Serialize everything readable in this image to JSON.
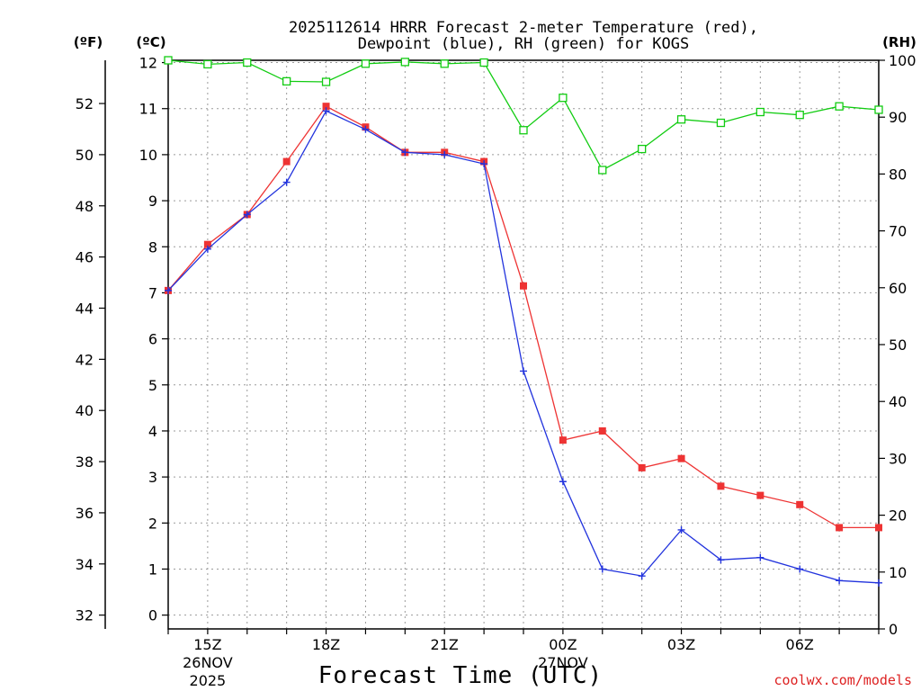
{
  "chart_data": {
    "type": "line",
    "title_line1": "2025112614 HRRR Forecast 2-meter Temperature (red),",
    "title_line2": "Dewpoint (blue), RH (green) for KOGS",
    "xlabel": "Forecast Time (UTC)",
    "credit": "coolwx.com/models",
    "unit_f": "(ºF)",
    "unit_c": "(ºC)",
    "unit_rh": "(RH)",
    "celsius_range": [
      -0.3,
      12.05
    ],
    "rh_range": [
      0,
      100
    ],
    "c_ticks": [
      "0",
      "1",
      "2",
      "3",
      "4",
      "5",
      "6",
      "7",
      "8",
      "9",
      "10",
      "11",
      "12"
    ],
    "f_ticks": [
      "32",
      "34",
      "36",
      "38",
      "40",
      "42",
      "44",
      "46",
      "48",
      "50",
      "52"
    ],
    "rh_ticks": [
      "0",
      "10",
      "20",
      "30",
      "40",
      "50",
      "60",
      "70",
      "80",
      "90",
      "100"
    ],
    "hours": [
      14,
      15,
      16,
      17,
      18,
      19,
      20,
      21,
      22,
      23,
      24,
      25,
      26,
      27,
      28,
      29,
      30,
      31,
      32
    ],
    "x_ticks": [
      {
        "hour": 15,
        "label": "15Z",
        "date": "26NOV",
        "year": "2025"
      },
      {
        "hour": 18,
        "label": "18Z"
      },
      {
        "hour": 21,
        "label": "21Z"
      },
      {
        "hour": 24,
        "label": "00Z",
        "date": "27NOV"
      },
      {
        "hour": 27,
        "label": "03Z"
      },
      {
        "hour": 30,
        "label": "06Z"
      }
    ],
    "series": [
      {
        "name": "Temperature",
        "unit": "C",
        "color": "#ee3333",
        "marker": "filled-square",
        "values": [
          7.05,
          8.05,
          8.7,
          9.85,
          11.05,
          10.6,
          10.05,
          10.05,
          9.85,
          7.15,
          3.8,
          4.0,
          3.2,
          3.4,
          2.8,
          2.6,
          2.4,
          1.9,
          1.9
        ]
      },
      {
        "name": "Dewpoint",
        "unit": "C",
        "color": "#2233dd",
        "marker": "plus",
        "values": [
          7.05,
          7.95,
          8.7,
          9.4,
          10.95,
          10.55,
          10.05,
          10.0,
          9.8,
          5.3,
          2.9,
          1.0,
          0.85,
          1.85,
          1.2,
          1.25,
          1.0,
          0.75,
          0.7
        ]
      },
      {
        "name": "RH",
        "unit": "%",
        "color": "#11cc11",
        "marker": "open-square",
        "values": [
          100,
          99.3,
          99.6,
          96.3,
          96.2,
          99.4,
          99.7,
          99.4,
          99.6,
          87.7,
          93.4,
          80.7,
          84.4,
          89.6,
          89.0,
          90.9,
          90.4,
          91.9,
          91.3
        ]
      }
    ]
  }
}
